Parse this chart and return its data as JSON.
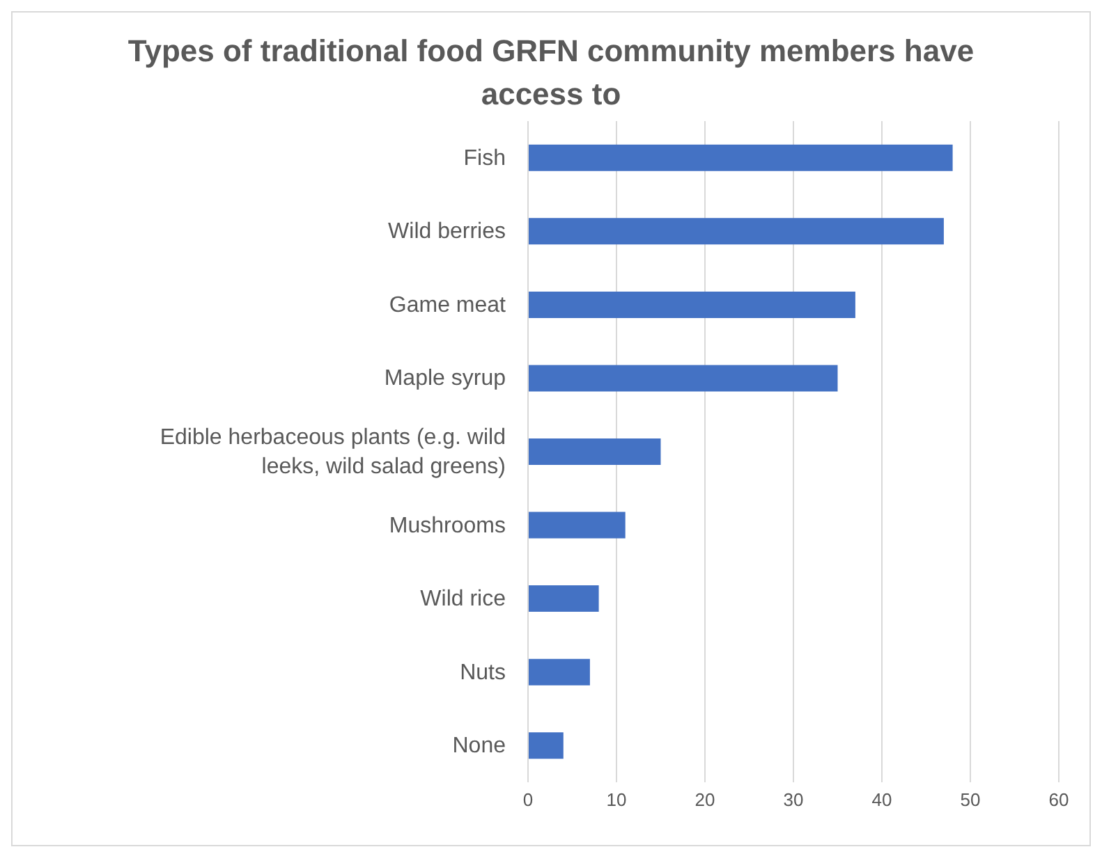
{
  "chart_data": {
    "type": "bar",
    "orientation": "horizontal",
    "title": "Types of traditional food GRFN community members have access to",
    "categories": [
      "Fish",
      "Wild berries",
      "Game meat",
      "Maple syrup",
      "Edible herbaceous plants (e.g. wild leeks, wild salad greens)",
      "Mushrooms",
      "Wild rice",
      "Nuts",
      "None"
    ],
    "values": [
      48,
      47,
      37,
      35,
      15,
      11,
      8,
      7,
      4
    ],
    "color": "#4472c4",
    "xlim": [
      0,
      60
    ],
    "xticks": [
      0,
      10,
      20,
      30,
      40,
      50,
      60
    ],
    "grid": "x",
    "legend": false
  }
}
